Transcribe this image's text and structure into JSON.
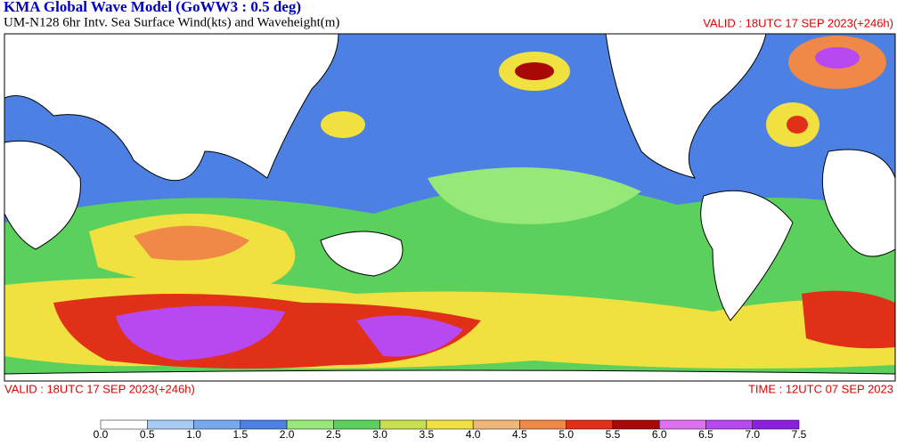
{
  "header": {
    "title": "KMA  Global Wave Model (GoWW3 : 0.5 deg)",
    "subtitle": "UM-N128  6hr Intv. Sea Surface Wind(kts) and Waveheight(m)",
    "valid": "VALID : 18UTC 17 SEP 2023(+246h)"
  },
  "footer": {
    "valid": "VALID : 18UTC 17 SEP 2023(+246h)",
    "time": "TIME : 12UTC 07 SEP 2023"
  },
  "colorbar": {
    "labels": [
      "0.0",
      "0.5",
      "1.0",
      "1.5",
      "2.0",
      "2.5",
      "3.0",
      "3.5",
      "4.0",
      "4.5",
      "5.0",
      "5.5",
      "6.0",
      "6.5",
      "7.0",
      "7.5"
    ],
    "colors": [
      "#ffffff",
      "#a8ccf4",
      "#78a8ee",
      "#4c80e2",
      "#96e878",
      "#5cd05c",
      "#c8e050",
      "#f0e040",
      "#f0b878",
      "#f08848",
      "#e03018",
      "#a80808",
      "#e070f0",
      "#b848f0",
      "#8c20e0"
    ]
  }
}
